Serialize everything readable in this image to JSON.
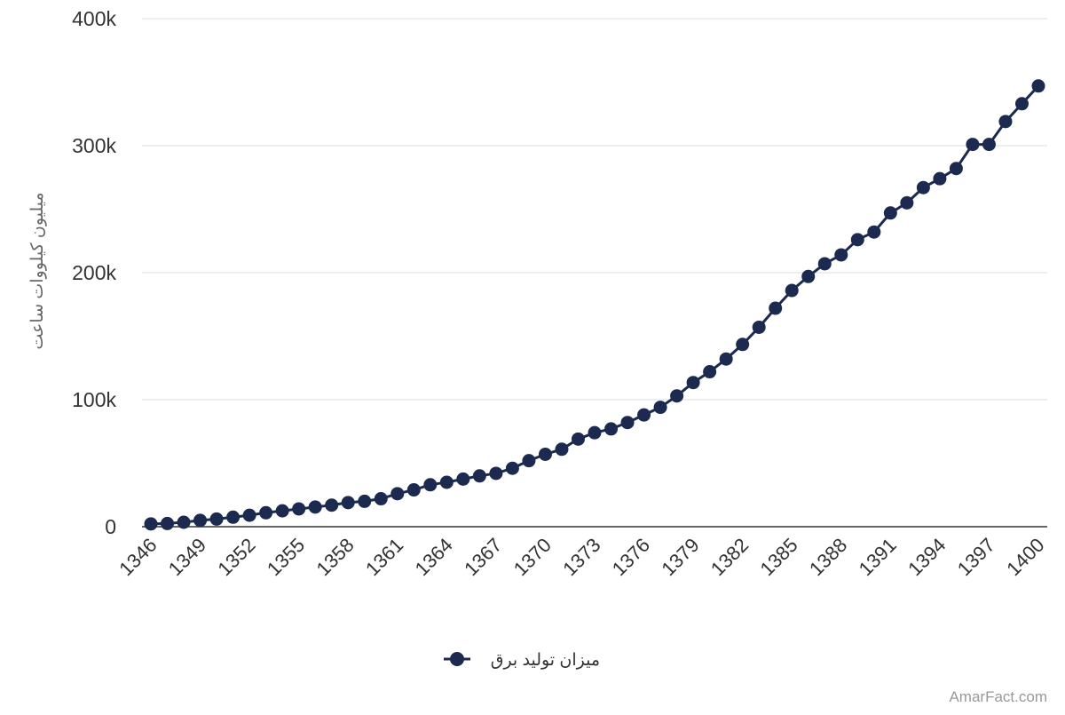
{
  "chart_data": {
    "type": "line",
    "title": "",
    "xlabel": "",
    "ylabel": "میلیون کیلووات ساعت",
    "x": [
      1346,
      1347,
      1348,
      1349,
      1350,
      1351,
      1352,
      1353,
      1354,
      1355,
      1356,
      1357,
      1358,
      1359,
      1360,
      1361,
      1362,
      1363,
      1364,
      1365,
      1366,
      1367,
      1368,
      1369,
      1370,
      1371,
      1372,
      1373,
      1374,
      1375,
      1376,
      1377,
      1378,
      1379,
      1380,
      1381,
      1382,
      1383,
      1384,
      1385,
      1386,
      1387,
      1388,
      1389,
      1390,
      1391,
      1392,
      1393,
      1394,
      1395,
      1396,
      1397,
      1398,
      1399,
      1400
    ],
    "xticks": [
      "1346",
      "1349",
      "1352",
      "1355",
      "1358",
      "1361",
      "1364",
      "1367",
      "1370",
      "1373",
      "1376",
      "1379",
      "1382",
      "1385",
      "1388",
      "1391",
      "1394",
      "1397",
      "1400"
    ],
    "ylim": [
      0,
      400000
    ],
    "yticks": [
      {
        "value": 0,
        "label": "0"
      },
      {
        "value": 100000,
        "label": "100k"
      },
      {
        "value": 200000,
        "label": "200k"
      },
      {
        "value": 300000,
        "label": "300k"
      },
      {
        "value": 400000,
        "label": "400k"
      }
    ],
    "grid": true,
    "legend_position": "bottom",
    "series": [
      {
        "name": "میزان تولید برق",
        "color": "#1b2a4e",
        "values": [
          2200,
          2500,
          3500,
          5000,
          6000,
          7500,
          9000,
          11000,
          12500,
          14000,
          15500,
          17000,
          19000,
          20000,
          22000,
          26000,
          29000,
          33000,
          35000,
          37500,
          40000,
          42000,
          46000,
          52000,
          57000,
          61000,
          69000,
          74000,
          77000,
          82000,
          88000,
          94000,
          103000,
          113500,
          122000,
          132000,
          143500,
          157000,
          172000,
          186000,
          197000,
          207000,
          214000,
          226000,
          232000,
          247000,
          255000,
          267000,
          274000,
          282000,
          301000,
          301000,
          319000,
          333000,
          347000
        ]
      }
    ]
  },
  "watermark": "AmarFact.com"
}
